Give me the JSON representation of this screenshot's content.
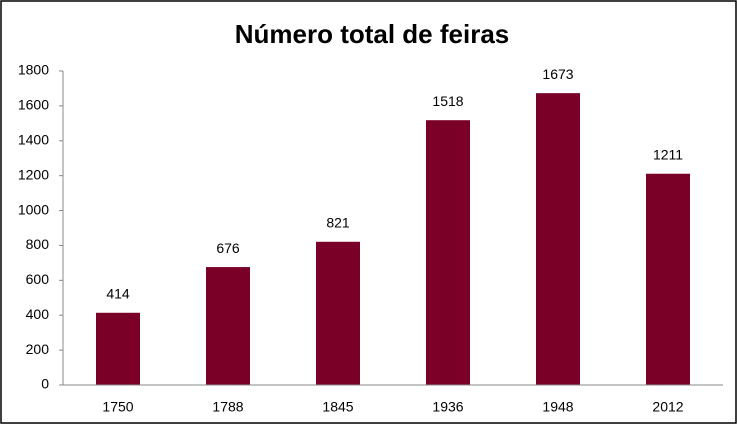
{
  "chart_data": {
    "type": "bar",
    "title": "Número total de feiras",
    "categories": [
      "1750",
      "1788",
      "1845",
      "1936",
      "1948",
      "2012"
    ],
    "values": [
      414,
      676,
      821,
      1518,
      1673,
      1211
    ],
    "color": "#7b0028",
    "ylim": [
      0,
      1800
    ],
    "yticks": [
      0,
      200,
      400,
      600,
      800,
      1000,
      1200,
      1400,
      1600,
      1800
    ],
    "grid": false
  }
}
